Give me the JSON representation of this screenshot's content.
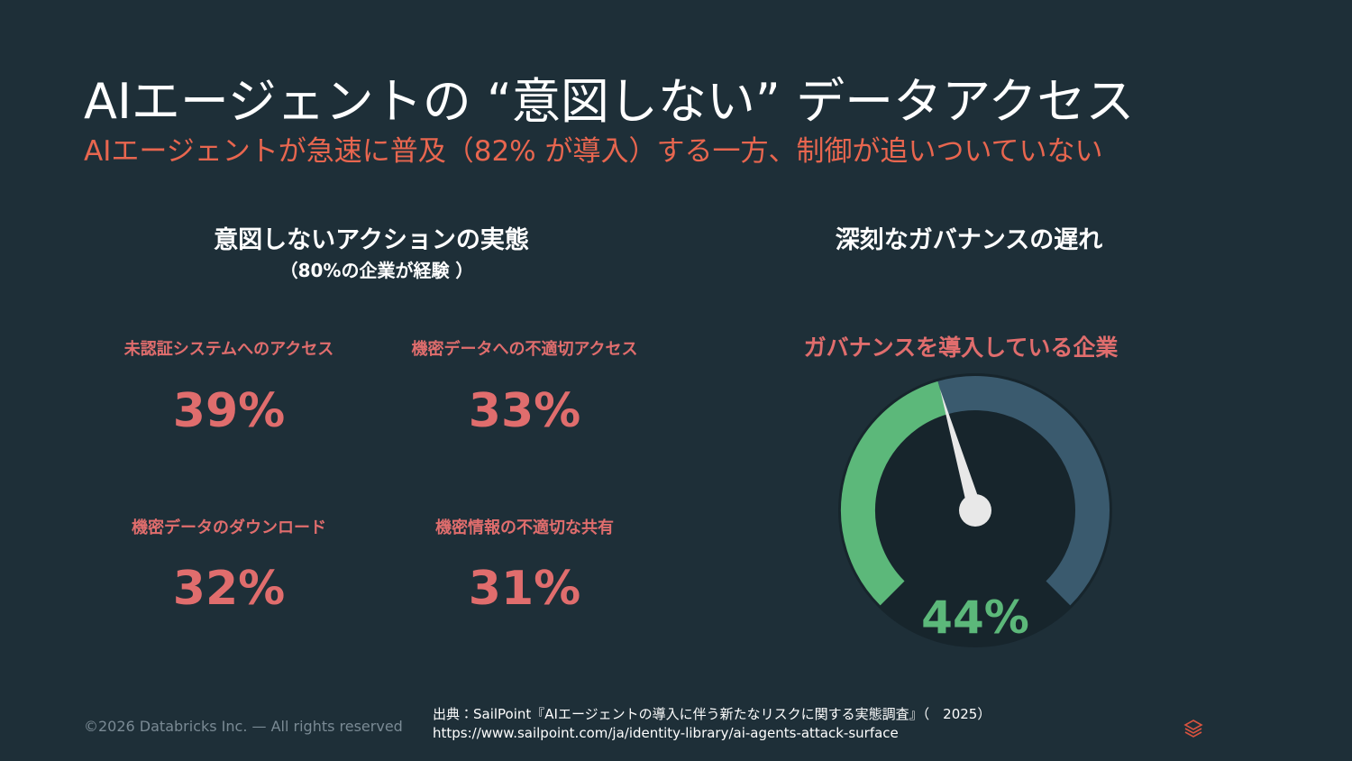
{
  "header": {
    "title": "AIエージェントの “意図しない” データアクセス",
    "subtitle": "AIエージェントが急速に普及（82% が導入）する一方、制御が追いついていない"
  },
  "left": {
    "heading": "意図しないアクションの実態",
    "subheading": "（80%の企業が経験 ）",
    "stats": [
      {
        "label": "未認証システムへのアクセス",
        "value": "39%"
      },
      {
        "label": "機密データへの不適切アクセス",
        "value": "33%"
      },
      {
        "label": "機密データのダウンロード",
        "value": "32%"
      },
      {
        "label": "機密情報の不適切な共有",
        "value": "31%"
      }
    ]
  },
  "right": {
    "heading": "深刻なガバナンスの遅れ"
  },
  "gauge": {
    "type": "gauge",
    "title": "ガバナンスを導入している企業",
    "values": [
      44
    ],
    "value_labels": [
      "44%"
    ],
    "ylim": [
      0,
      100
    ],
    "colors": [
      "#5cb87a",
      "#3a5a6e"
    ]
  },
  "footer": {
    "copyright": "©2026 Databricks Inc. — All rights reserved",
    "source": "出典：SailPoint『AIエージェントの導入に伴う新たなリスクに関する実態調査』（　2025）",
    "url": "https://www.sailpoint.com/ja/identity-library/ai-agents-attack-surface"
  }
}
